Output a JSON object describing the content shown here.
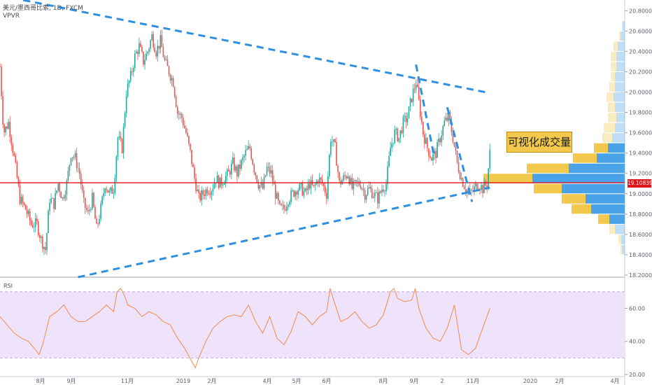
{
  "header": {
    "symbol": "美元/墨西哥比索, 1D, FXCM",
    "indicator": "VPVR"
  },
  "price_tag": "19.10839",
  "callout": "可视化成交量",
  "rsi_label": "RSI",
  "colors": {
    "up": "#26a69a",
    "down": "#ef5350",
    "trendline": "#2f8fe0",
    "hline": "#e0161a",
    "vp_up": "#f2c94c",
    "vp_down": "#4aa3e8",
    "rsi_line": "#f08a4b",
    "rsi_band": "#efe3fb"
  },
  "chart_data": [
    {
      "type": "candlestick",
      "title": "美元/墨西哥比索, 1D, FXCM",
      "y_ticks": [
        "18.20000",
        "18.40000",
        "18.60000",
        "18.80000",
        "19.00000",
        "19.20000",
        "19.40000",
        "19.60000",
        "19.80000",
        "20.00000",
        "20.20000",
        "20.40000",
        "20.60000",
        "20.80000"
      ],
      "ylim": [
        18.2,
        20.85
      ],
      "x_ticks": [
        "8月",
        "9月",
        "11月",
        "2019",
        "2月",
        "4月",
        "5月",
        "6月",
        "8月",
        "9月",
        "2",
        "11月",
        "2020",
        "2月",
        "4月"
      ],
      "close_path": [
        [
          0,
          20.25
        ],
        [
          5,
          19.6
        ],
        [
          12,
          19.7
        ],
        [
          20,
          19.35
        ],
        [
          28,
          18.95
        ],
        [
          36,
          18.85
        ],
        [
          44,
          18.7
        ],
        [
          52,
          18.7
        ],
        [
          58,
          18.55
        ],
        [
          64,
          18.45
        ],
        [
          70,
          18.95
        ],
        [
          76,
          18.9
        ],
        [
          82,
          19.1
        ],
        [
          88,
          18.95
        ],
        [
          94,
          19.1
        ],
        [
          100,
          19.4
        ],
        [
          106,
          19.35
        ],
        [
          112,
          19.2
        ],
        [
          118,
          18.9
        ],
        [
          124,
          18.8
        ],
        [
          130,
          18.95
        ],
        [
          136,
          18.65
        ],
        [
          142,
          18.85
        ],
        [
          148,
          19.1
        ],
        [
          154,
          19.0
        ],
        [
          160,
          19.05
        ],
        [
          166,
          19.55
        ],
        [
          172,
          19.45
        ],
        [
          178,
          20.0
        ],
        [
          184,
          20.15
        ],
        [
          190,
          20.35
        ],
        [
          196,
          20.45
        ],
        [
          202,
          20.3
        ],
        [
          208,
          20.4
        ],
        [
          214,
          20.55
        ],
        [
          220,
          20.4
        ],
        [
          226,
          20.5
        ],
        [
          232,
          20.3
        ],
        [
          238,
          20.2
        ],
        [
          244,
          20.1
        ],
        [
          250,
          19.8
        ],
        [
          256,
          19.75
        ],
        [
          262,
          19.6
        ],
        [
          268,
          19.4
        ],
        [
          274,
          19.15
        ],
        [
          280,
          18.95
        ],
        [
          286,
          19.0
        ],
        [
          292,
          19.05
        ],
        [
          298,
          19.05
        ],
        [
          304,
          19.15
        ],
        [
          310,
          19.1
        ],
        [
          316,
          19.15
        ],
        [
          322,
          19.2
        ],
        [
          328,
          19.3
        ],
        [
          334,
          19.2
        ],
        [
          340,
          19.3
        ],
        [
          346,
          19.4
        ],
        [
          352,
          19.45
        ],
        [
          358,
          19.25
        ],
        [
          364,
          19.1
        ],
        [
          370,
          19.05
        ],
        [
          376,
          19.25
        ],
        [
          382,
          19.2
        ],
        [
          388,
          19.0
        ],
        [
          394,
          18.85
        ],
        [
          400,
          18.85
        ],
        [
          406,
          18.95
        ],
        [
          412,
          19.0
        ],
        [
          418,
          19.05
        ],
        [
          424,
          19.05
        ],
        [
          430,
          19.0
        ],
        [
          436,
          19.1
        ],
        [
          442,
          19.05
        ],
        [
          448,
          19.15
        ],
        [
          454,
          19.1
        ],
        [
          460,
          19.0
        ],
        [
          466,
          19.55
        ],
        [
          472,
          19.45
        ],
        [
          478,
          19.1
        ],
        [
          484,
          19.15
        ],
        [
          490,
          19.2
        ],
        [
          496,
          19.05
        ],
        [
          502,
          19.1
        ],
        [
          508,
          19.1
        ],
        [
          514,
          19.0
        ],
        [
          520,
          19.05
        ],
        [
          526,
          19.0
        ],
        [
          532,
          18.95
        ],
        [
          538,
          19.05
        ],
        [
          544,
          19.1
        ],
        [
          550,
          19.45
        ],
        [
          556,
          19.6
        ],
        [
          562,
          19.55
        ],
        [
          568,
          19.7
        ],
        [
          574,
          19.75
        ],
        [
          580,
          19.95
        ],
        [
          586,
          20.1
        ],
        [
          590,
          19.9
        ],
        [
          596,
          19.6
        ],
        [
          602,
          19.45
        ],
        [
          608,
          19.35
        ],
        [
          614,
          19.4
        ],
        [
          620,
          19.55
        ],
        [
          626,
          19.7
        ],
        [
          632,
          19.75
        ],
        [
          638,
          19.55
        ],
        [
          644,
          19.3
        ],
        [
          650,
          19.15
        ],
        [
          656,
          19.05
        ],
        [
          662,
          19.0
        ],
        [
          668,
          19.05
        ],
        [
          674,
          19.1
        ],
        [
          680,
          19.05
        ],
        [
          686,
          19.1
        ],
        [
          690,
          19.4
        ]
      ],
      "trendlines": [
        {
          "from": [
            0,
            20.95
          ],
          "to": [
            690,
            19.99
          ]
        },
        {
          "from": [
            110,
            18.18
          ],
          "to": [
            690,
            19.06
          ]
        },
        {
          "from": [
            586,
            20.27
          ],
          "to": [
            612,
            19.35
          ]
        },
        {
          "from": [
            630,
            19.85
          ],
          "to": [
            665,
            18.92
          ]
        }
      ],
      "horizontal_line": 19.10839,
      "volume_profile": [
        {
          "price": 18.45,
          "up": 2,
          "down": 4
        },
        {
          "price": 18.55,
          "up": 4,
          "down": 5
        },
        {
          "price": 18.65,
          "up": 8,
          "down": 14
        },
        {
          "price": 18.75,
          "up": 16,
          "down": 22
        },
        {
          "price": 18.85,
          "up": 28,
          "down": 48
        },
        {
          "price": 18.95,
          "up": 34,
          "down": 56
        },
        {
          "price": 19.05,
          "up": 40,
          "down": 90
        },
        {
          "price": 19.15,
          "up": 70,
          "down": 132
        },
        {
          "price": 19.25,
          "up": 60,
          "down": 80
        },
        {
          "price": 19.35,
          "up": 34,
          "down": 40
        },
        {
          "price": 19.45,
          "up": 20,
          "down": 24
        },
        {
          "price": 19.55,
          "up": 14,
          "down": 18
        },
        {
          "price": 19.65,
          "up": 16,
          "down": 14
        },
        {
          "price": 19.75,
          "up": 12,
          "down": 12
        },
        {
          "price": 19.85,
          "up": 10,
          "down": 14
        },
        {
          "price": 19.95,
          "up": 10,
          "down": 16
        },
        {
          "price": 20.05,
          "up": 8,
          "down": 14
        },
        {
          "price": 20.15,
          "up": 6,
          "down": 14
        },
        {
          "price": 20.25,
          "up": 8,
          "down": 12
        },
        {
          "price": 20.35,
          "up": 8,
          "down": 12
        },
        {
          "price": 20.45,
          "up": 6,
          "down": 10
        },
        {
          "price": 20.55,
          "up": 2,
          "down": 6
        },
        {
          "price": 20.65,
          "up": 1,
          "down": 3
        }
      ]
    },
    {
      "type": "line",
      "title": "RSI",
      "y_ticks": [
        "20.00",
        "40.00",
        "60.00"
      ],
      "ylim": [
        20,
        75
      ],
      "bands": [
        30,
        70
      ],
      "x": [
        0,
        10,
        20,
        30,
        40,
        50,
        55,
        60,
        70,
        80,
        90,
        100,
        110,
        120,
        130,
        140,
        150,
        160,
        165,
        170,
        175,
        180,
        190,
        200,
        210,
        220,
        230,
        240,
        250,
        260,
        270,
        275,
        280,
        290,
        300,
        310,
        320,
        330,
        340,
        350,
        360,
        370,
        380,
        390,
        400,
        410,
        420,
        430,
        440,
        450,
        460,
        465,
        470,
        480,
        490,
        500,
        510,
        520,
        530,
        540,
        550,
        555,
        560,
        570,
        580,
        585,
        590,
        600,
        610,
        620,
        630,
        640,
        650,
        660,
        670,
        680,
        690
      ],
      "y": [
        55,
        50,
        45,
        42,
        40,
        35,
        32,
        38,
        55,
        58,
        62,
        55,
        52,
        52,
        55,
        58,
        62,
        58,
        70,
        72,
        68,
        62,
        60,
        55,
        58,
        56,
        52,
        50,
        42,
        36,
        28,
        24,
        30,
        40,
        48,
        52,
        55,
        56,
        55,
        62,
        52,
        45,
        55,
        42,
        38,
        46,
        58,
        55,
        50,
        55,
        58,
        72,
        65,
        52,
        54,
        58,
        52,
        48,
        50,
        56,
        70,
        72,
        66,
        64,
        65,
        72,
        60,
        48,
        42,
        40,
        48,
        62,
        35,
        32,
        36,
        48,
        60
      ]
    }
  ]
}
